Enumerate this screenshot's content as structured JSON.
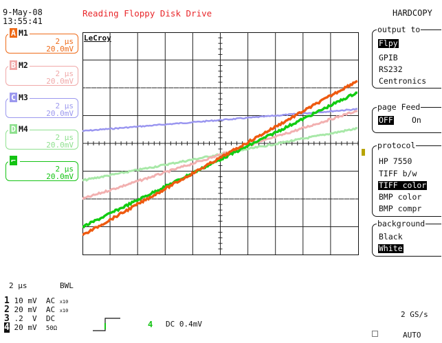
{
  "header": {
    "date": "9-May-08",
    "time": "13:55:41",
    "status": "Reading Floppy Disk Drive",
    "brand": "LeCroy"
  },
  "traces": [
    {
      "badge": "A",
      "name": "M1",
      "time_div": "2 μs",
      "volt_div": "20.0mV",
      "color": "#ee6a18"
    },
    {
      "badge": "B",
      "name": "M2",
      "time_div": "2 μs",
      "volt_div": "20.0mV",
      "color": "#f0a8a8"
    },
    {
      "badge": "C",
      "name": "M3",
      "time_div": "2 μs",
      "volt_div": "20.0mV",
      "color": "#9b98ee"
    },
    {
      "badge": "D",
      "name": "M4",
      "time_div": "2 μs",
      "volt_div": "20.0mV",
      "color": "#8fe08f"
    },
    {
      "badge": "",
      "name": "",
      "time_div": "2 μs",
      "volt_div": "20.0mV",
      "color": "#13c313"
    }
  ],
  "menu": {
    "title": "HARDCOPY",
    "output_to": {
      "title": "output to",
      "options": [
        "Flpy",
        "GPIB",
        "RS232",
        "Centronics"
      ],
      "selected": "Flpy"
    },
    "page_feed": {
      "title": "page Feed",
      "options": [
        "OFF",
        "On"
      ],
      "selected": "OFF"
    },
    "protocol": {
      "title": "protocol",
      "options": [
        "HP 7550",
        "TIFF b/w",
        "TIFF color",
        "BMP color",
        "BMP compr"
      ],
      "selected": "TIFF color"
    },
    "background": {
      "title": "background",
      "options": [
        "Black",
        "White"
      ],
      "selected": "White"
    }
  },
  "bottom": {
    "timebase": "2 μs",
    "bwl": "BWL",
    "channels": [
      {
        "num": "1",
        "volts": "10 mV",
        "coupling": "AC",
        "probe": "x10"
      },
      {
        "num": "2",
        "volts": "20 mV",
        "coupling": "AC",
        "probe": "x10"
      },
      {
        "num": "3",
        "volts": ".2  V",
        "coupling": "DC",
        "probe": ""
      },
      {
        "num": "4",
        "volts": "20 mV",
        "coupling": "50Ω",
        "probe": ""
      }
    ],
    "trigger_channel": "4",
    "trigger_info": "DC 0.4mV",
    "sample_rate": "2 GS/s",
    "trigger_mode": "AUTO"
  },
  "colors": {
    "trace1": "#ee5a10",
    "trace2": "#f2b0b0",
    "trace3": "#9a96f0",
    "trace4": "#a8e8a8",
    "trace5": "#12cc12",
    "grid": "#111111",
    "status": "#e8262a"
  }
}
